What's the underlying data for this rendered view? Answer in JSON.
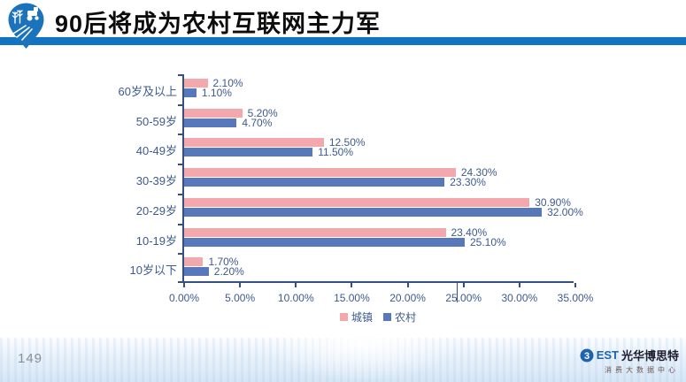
{
  "header": {
    "title": "90后将成为农村互联网主力军"
  },
  "colors": {
    "header_bar": "#1174c3",
    "axis": "#33507e",
    "label_text": "#3d5a8f",
    "town_pink": "#f2a8ac",
    "village_blue": "#5878bc"
  },
  "chart_data": {
    "type": "bar",
    "orientation": "horizontal",
    "categories": [
      "60岁及以上",
      "50-59岁",
      "40-49岁",
      "30-39岁",
      "20-29岁",
      "10-19岁",
      "10岁以下"
    ],
    "series": [
      {
        "name": "城镇",
        "color": "#f2a8ac",
        "values": [
          2.1,
          5.2,
          12.5,
          24.3,
          30.9,
          23.4,
          1.7
        ]
      },
      {
        "name": "农村",
        "color": "#5878bc",
        "values": [
          1.1,
          4.7,
          11.5,
          23.3,
          32.0,
          25.1,
          2.2
        ]
      }
    ],
    "value_label_format": "percent_2dp",
    "x_ticks": [
      "0.00%",
      "5.00%",
      "10.00%",
      "15.00%",
      "20.00%",
      "25.00%",
      "30.00%",
      "35.00%"
    ],
    "xlim": [
      0,
      35
    ],
    "grid": false,
    "legend_position": "bottom"
  },
  "footer": {
    "page_number": "149",
    "brand": {
      "best_text": "EST",
      "name": "光华博思特",
      "subtitle": "消费大数据中心"
    }
  }
}
